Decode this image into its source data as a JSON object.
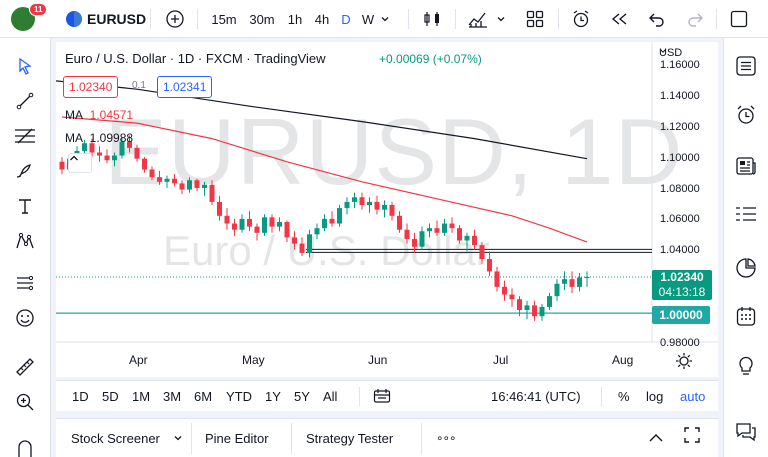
{
  "topbar": {
    "logo_text": "",
    "notifications": "11",
    "symbol": "EURUSD",
    "intervals": [
      "15m",
      "30m",
      "1h",
      "4h",
      "D",
      "W"
    ],
    "active_interval": "D"
  },
  "legend": {
    "title": "Euro / U.S. Dollar · 1D · FXCM · TradingView",
    "change": "+0.00069 (+0.07%)",
    "sell_price": "1.02340",
    "spread": "0.1",
    "buy_price": "1.02341",
    "ma1_label": "MA",
    "ma1_value": "1.04571",
    "ma2_label": "MA",
    "ma2_value": "1.09988"
  },
  "watermark": {
    "symbol": "EURUSD, 1D",
    "description": "Euro / U.S. Dollar"
  },
  "axis": {
    "currency": "USD",
    "y_labels": [
      "1.16000",
      "1.14000",
      "1.12000",
      "1.10000",
      "1.08000",
      "1.06000",
      "1.04000",
      "1.02000",
      "1.00000",
      "0.98000"
    ],
    "x_labels": [
      "Apr",
      "May",
      "Jun",
      "Jul",
      "Aug"
    ],
    "last_price": "1.02340",
    "countdown": "04:13:18",
    "level_price": "1.00000"
  },
  "rangebar": {
    "ranges": [
      "1D",
      "5D",
      "1M",
      "3M",
      "6M",
      "YTD",
      "1Y",
      "5Y",
      "All"
    ],
    "clock": "16:46:41 (UTC)",
    "percent": "%",
    "log": "log",
    "auto": "auto"
  },
  "bottompanel": {
    "tabs": [
      "Stock Screener",
      "Pine Editor",
      "Strategy Tester"
    ],
    "more": "∘∘∘"
  },
  "colors": {
    "up": "#089981",
    "down": "#f23645",
    "ma1": "#f23645",
    "ma2": "#131722",
    "level": "#22a7a7",
    "accent": "#2962ff"
  },
  "chart_data": {
    "type": "candlestick",
    "title": "Euro / U.S. Dollar · 1D · FXCM · TradingView",
    "ylim": [
      0.98,
      1.16
    ],
    "x_ticks": [
      "Apr",
      "May",
      "Jun",
      "Jul",
      "Aug"
    ],
    "horizontal_lines": [
      1.04,
      1.0
    ],
    "candles": [
      [
        1.098,
        1.101,
        1.09,
        1.093
      ],
      [
        1.093,
        1.102,
        1.091,
        1.1
      ],
      [
        1.1,
        1.108,
        1.098,
        1.105
      ],
      [
        1.105,
        1.112,
        1.103,
        1.11
      ],
      [
        1.11,
        1.113,
        1.101,
        1.104
      ],
      [
        1.104,
        1.108,
        1.098,
        1.102
      ],
      [
        1.102,
        1.106,
        1.097,
        1.099
      ],
      [
        1.099,
        1.104,
        1.095,
        1.102
      ],
      [
        1.102,
        1.114,
        1.1,
        1.111
      ],
      [
        1.111,
        1.115,
        1.104,
        1.107
      ],
      [
        1.107,
        1.109,
        1.098,
        1.1
      ],
      [
        1.1,
        1.101,
        1.091,
        1.093
      ],
      [
        1.093,
        1.095,
        1.086,
        1.088
      ],
      [
        1.088,
        1.092,
        1.083,
        1.085
      ],
      [
        1.085,
        1.089,
        1.081,
        1.087
      ],
      [
        1.087,
        1.09,
        1.082,
        1.084
      ],
      [
        1.084,
        1.086,
        1.077,
        1.08
      ],
      [
        1.08,
        1.088,
        1.078,
        1.086
      ],
      [
        1.086,
        1.087,
        1.079,
        1.081
      ],
      [
        1.081,
        1.085,
        1.076,
        1.083
      ],
      [
        1.083,
        1.086,
        1.07,
        1.072
      ],
      [
        1.072,
        1.076,
        1.06,
        1.063
      ],
      [
        1.063,
        1.068,
        1.054,
        1.058
      ],
      [
        1.058,
        1.061,
        1.05,
        1.054
      ],
      [
        1.054,
        1.064,
        1.052,
        1.061
      ],
      [
        1.061,
        1.066,
        1.053,
        1.056
      ],
      [
        1.056,
        1.058,
        1.047,
        1.052
      ],
      [
        1.052,
        1.064,
        1.05,
        1.062
      ],
      [
        1.062,
        1.064,
        1.052,
        1.056
      ],
      [
        1.056,
        1.062,
        1.053,
        1.059
      ],
      [
        1.059,
        1.06,
        1.046,
        1.049
      ],
      [
        1.049,
        1.053,
        1.041,
        1.045
      ],
      [
        1.045,
        1.049,
        1.037,
        1.039
      ],
      [
        1.039,
        1.054,
        1.036,
        1.051
      ],
      [
        1.051,
        1.058,
        1.048,
        1.055
      ],
      [
        1.055,
        1.064,
        1.053,
        1.061
      ],
      [
        1.061,
        1.066,
        1.056,
        1.058
      ],
      [
        1.058,
        1.07,
        1.056,
        1.068
      ],
      [
        1.068,
        1.075,
        1.064,
        1.072
      ],
      [
        1.072,
        1.078,
        1.068,
        1.075
      ],
      [
        1.075,
        1.078,
        1.067,
        1.07
      ],
      [
        1.07,
        1.075,
        1.065,
        1.072
      ],
      [
        1.072,
        1.076,
        1.064,
        1.067
      ],
      [
        1.067,
        1.073,
        1.062,
        1.07
      ],
      [
        1.07,
        1.072,
        1.06,
        1.063
      ],
      [
        1.063,
        1.066,
        1.052,
        1.054
      ],
      [
        1.054,
        1.058,
        1.045,
        1.048
      ],
      [
        1.048,
        1.052,
        1.039,
        1.043
      ],
      [
        1.043,
        1.056,
        1.041,
        1.053
      ],
      [
        1.053,
        1.058,
        1.049,
        1.055
      ],
      [
        1.055,
        1.06,
        1.05,
        1.052
      ],
      [
        1.052,
        1.061,
        1.05,
        1.058
      ],
      [
        1.058,
        1.062,
        1.052,
        1.055
      ],
      [
        1.055,
        1.057,
        1.045,
        1.047
      ],
      [
        1.047,
        1.052,
        1.04,
        1.05
      ],
      [
        1.05,
        1.054,
        1.041,
        1.044
      ],
      [
        1.044,
        1.046,
        1.032,
        1.035
      ],
      [
        1.035,
        1.04,
        1.024,
        1.027
      ],
      [
        1.027,
        1.03,
        1.014,
        1.017
      ],
      [
        1.017,
        1.021,
        1.008,
        1.012
      ],
      [
        1.012,
        1.016,
        1.004,
        1.009
      ],
      [
        1.009,
        1.011,
        0.998,
        1.002
      ],
      [
        1.002,
        1.008,
        0.996,
        1.005
      ],
      [
        1.005,
        1.008,
        0.995,
        0.998
      ],
      [
        0.998,
        1.006,
        0.995,
        1.004
      ],
      [
        1.004,
        1.013,
        1.002,
        1.011
      ],
      [
        1.011,
        1.022,
        1.008,
        1.019
      ],
      [
        1.019,
        1.027,
        1.015,
        1.022
      ],
      [
        1.022,
        1.027,
        1.013,
        1.017
      ],
      [
        1.017,
        1.026,
        1.014,
        1.023
      ],
      [
        1.023,
        1.027,
        1.017,
        1.0234
      ]
    ],
    "ma_series": [
      {
        "name": "MA",
        "value": "1.04571",
        "points": [
          [
            0,
            1.127
          ],
          [
            10,
            1.123
          ],
          [
            20,
            1.113
          ],
          [
            30,
            1.098
          ],
          [
            40,
            1.085
          ],
          [
            50,
            1.074
          ],
          [
            60,
            1.063
          ],
          [
            65,
            1.055
          ],
          [
            70,
            1.046
          ]
        ]
      },
      {
        "name": "MA",
        "value": "1.09988",
        "points": [
          [
            -4,
            1.152
          ],
          [
            10,
            1.145
          ],
          [
            25,
            1.134
          ],
          [
            40,
            1.124
          ],
          [
            55,
            1.113
          ],
          [
            70,
            1.1
          ]
        ]
      }
    ]
  }
}
